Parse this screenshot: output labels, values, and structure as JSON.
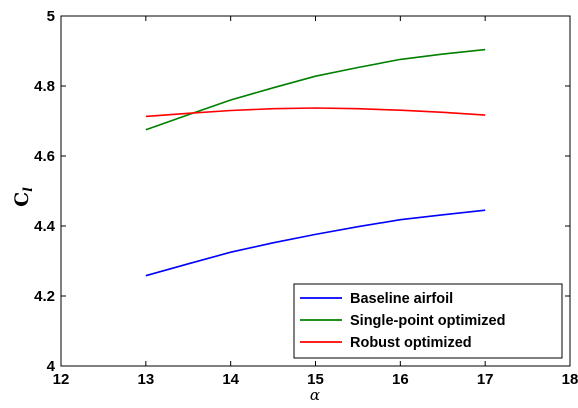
{
  "chart_data": {
    "type": "line",
    "xlabel": "α",
    "ylabel": "C",
    "ylabel_subscript": "l",
    "xlim": [
      12,
      18
    ],
    "ylim": [
      4,
      5
    ],
    "xticks": [
      "12",
      "13",
      "14",
      "15",
      "16",
      "17",
      "18"
    ],
    "yticks": [
      "4",
      "4.2",
      "4.4",
      "4.6",
      "4.8",
      "5"
    ],
    "grid": false,
    "legend_position": "bottom-right",
    "series": [
      {
        "name": "Baseline airfoil",
        "color": "#0000ff",
        "x": [
          13,
          13.5,
          14,
          14.5,
          15,
          15.5,
          16,
          16.5,
          17
        ],
        "y": [
          4.258,
          4.292,
          4.325,
          4.352,
          4.376,
          4.398,
          4.418,
          4.432,
          4.445
        ]
      },
      {
        "name": "Single-point optimized",
        "color": "#008000",
        "x": [
          13,
          13.5,
          14,
          14.5,
          15,
          15.5,
          16,
          16.5,
          17
        ],
        "y": [
          4.675,
          4.718,
          4.76,
          4.795,
          4.828,
          4.853,
          4.876,
          4.891,
          4.904
        ]
      },
      {
        "name": "Robust optimized",
        "color": "#ff0000",
        "x": [
          13,
          13.5,
          14,
          14.5,
          15,
          15.5,
          16,
          16.5,
          17
        ],
        "y": [
          4.713,
          4.722,
          4.73,
          4.735,
          4.737,
          4.735,
          4.731,
          4.725,
          4.717
        ]
      }
    ]
  }
}
